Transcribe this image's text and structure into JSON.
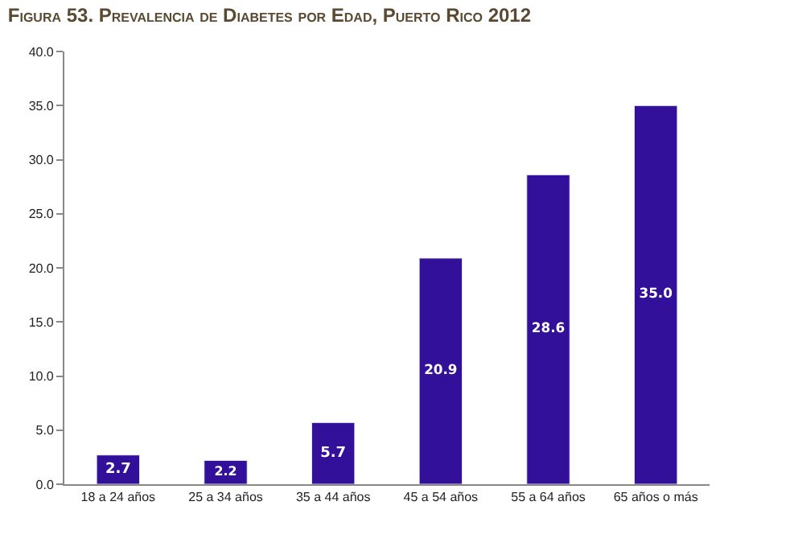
{
  "chart_data": {
    "type": "bar",
    "title": "Figura 53. Prevalencia de Diabetes por Edad, Puerto Rico 2012",
    "categories": [
      "18 a 24 años",
      "25 a 34 años",
      "35 a 44 años",
      "45 a 54 años",
      "55 a 64 años",
      "65 años o más"
    ],
    "values": [
      2.7,
      2.2,
      5.7,
      20.9,
      28.6,
      35.0
    ],
    "value_labels": [
      "2.7",
      "2.2",
      "5.7",
      "20.9",
      "28.6",
      "35.0"
    ],
    "color": "#33109a",
    "ylim": [
      0,
      40
    ],
    "yticks": [
      {
        "value": 0,
        "label": "0.0"
      },
      {
        "value": 5,
        "label": "5.0"
      },
      {
        "value": 10,
        "label": "10.0"
      },
      {
        "value": 15,
        "label": "15.0"
      },
      {
        "value": 20,
        "label": "20.0"
      },
      {
        "value": 25,
        "label": "25.0"
      },
      {
        "value": 30,
        "label": "30.0"
      },
      {
        "value": 35,
        "label": "35.0"
      },
      {
        "value": 40,
        "label": "40.0"
      }
    ],
    "legend": false
  }
}
